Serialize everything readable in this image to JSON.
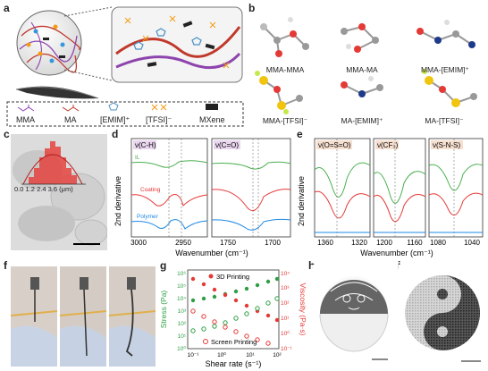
{
  "panels": {
    "a": {
      "label": "a",
      "legend": [
        "MMA",
        "MA",
        "[EMIM]⁺",
        "[TFSI]⁻",
        "MXene"
      ]
    },
    "b": {
      "label": "b",
      "molecules": [
        "MMA-MMA",
        "MMA-MA",
        "MMA-[EMIM]⁺",
        "MMA-[TFSI]⁻",
        "MA-[EMIM]⁺",
        "MA-[TFSI]⁻"
      ]
    },
    "c": {
      "label": "c",
      "ticks": [
        "0.0",
        "1.2",
        "2.4",
        "3.6"
      ],
      "unit": "(μm)"
    },
    "d": {
      "label": "d",
      "ylabel": "2nd derivative",
      "xlabel": "Wavenumber (cm⁻¹)",
      "band1": "ν(C-H)",
      "band2": "ν(C=O)",
      "ticks1": [
        "3000",
        "2950"
      ],
      "ticks2": [
        "1750",
        "1700"
      ],
      "series": [
        "IL",
        "Coating",
        "Polymer"
      ]
    },
    "e": {
      "label": "e",
      "ylabel": "2nd derivative",
      "xlabel": "Wavenumber (cm⁻¹)",
      "band1": "ν(O=S=O)",
      "band2": "ν(CF₃)",
      "band3": "ν(S-N-S)",
      "ticks1": [
        "1360",
        "1320"
      ],
      "ticks2": [
        "1200",
        "1160"
      ],
      "ticks3": [
        "1080",
        "1040"
      ]
    },
    "f": {
      "label": "f"
    },
    "g": {
      "label": "g",
      "ylabel_left": "Stress (Pa)",
      "ylabel_right": "Viscosity (Pa·s)",
      "xlabel": "Shear rate (s⁻¹)",
      "legend_3d": "3D Printing",
      "legend_screen": "Screen Printing",
      "yticks_left": [
        "10⁰",
        "10¹",
        "10²",
        "10³",
        "10⁴",
        "10⁵",
        "10⁶"
      ],
      "yticks_right": [
        "10⁻¹",
        "10⁰",
        "10¹",
        "10²",
        "10³",
        "10⁴"
      ],
      "xticks": [
        "10⁻¹",
        "10⁰",
        "10¹",
        "10²"
      ]
    },
    "h": {
      "label": "h"
    },
    "i": {
      "label": "i"
    }
  },
  "colors": {
    "il": "#4caf50",
    "coating": "#e53935",
    "polymer": "#1e88e5",
    "band_bg": "#e9d6ee",
    "band_bg2": "#f6dfcf"
  }
}
